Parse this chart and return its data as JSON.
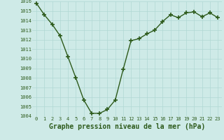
{
  "x": [
    0,
    1,
    2,
    3,
    4,
    5,
    6,
    7,
    8,
    9,
    10,
    11,
    12,
    13,
    14,
    15,
    16,
    17,
    18,
    19,
    20,
    21,
    22,
    23
  ],
  "y": [
    1015.8,
    1014.6,
    1013.6,
    1012.4,
    1010.2,
    1008.0,
    1005.7,
    1004.3,
    1004.3,
    1004.7,
    1005.7,
    1008.9,
    1011.9,
    1012.1,
    1012.6,
    1013.0,
    1013.9,
    1014.6,
    1014.3,
    1014.8,
    1014.9,
    1014.4,
    1014.8,
    1014.3
  ],
  "ylim": [
    1004,
    1016
  ],
  "yticks": [
    1004,
    1005,
    1006,
    1007,
    1008,
    1009,
    1010,
    1011,
    1012,
    1013,
    1014,
    1015,
    1016
  ],
  "xticks": [
    0,
    1,
    2,
    3,
    4,
    5,
    6,
    7,
    8,
    9,
    10,
    11,
    12,
    13,
    14,
    15,
    16,
    17,
    18,
    19,
    20,
    21,
    22,
    23
  ],
  "xlabel": "Graphe pression niveau de la mer (hPa)",
  "line_color": "#2d5a1b",
  "bg_color": "#ceeae7",
  "grid_color": "#b0d8d4",
  "marker": "+",
  "marker_size": 4,
  "linewidth": 1.0,
  "xlabel_fontsize": 7,
  "tick_fontsize": 5,
  "tick_color": "#2d5a1b",
  "label_color": "#2d5a1b"
}
